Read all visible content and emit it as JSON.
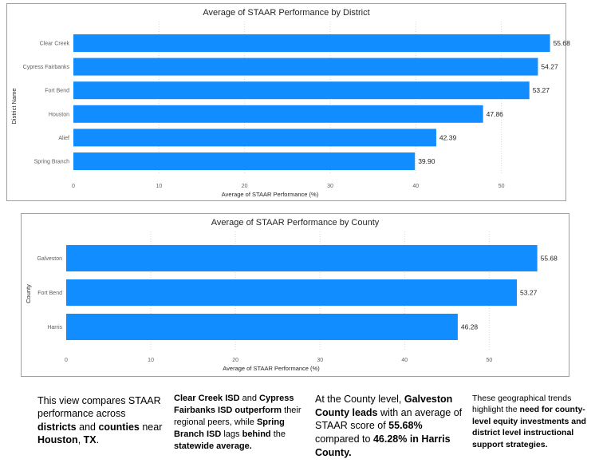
{
  "chart_data": [
    {
      "type": "bar",
      "orientation": "horizontal",
      "title": "Average of STAAR Performance by District",
      "xlabel": "Average of STAAR Performance (%)",
      "ylabel": "District Name",
      "categories": [
        "Clear Creek",
        "Cypress Fairbanks",
        "Fort Bend",
        "Houston",
        "Alief",
        "Spring Branch"
      ],
      "values": [
        55.68,
        54.27,
        53.27,
        47.86,
        42.39,
        39.9
      ],
      "data_labels": [
        "55.68",
        "54.27",
        "53.27",
        "47.86",
        "42.39",
        "39.90"
      ],
      "xlim": [
        0,
        56
      ],
      "ticks": [
        0,
        10,
        20,
        30,
        40,
        50
      ],
      "tick_labels": [
        "0",
        "10",
        "20",
        "30",
        "40",
        "50"
      ],
      "grid": "vertical dotted",
      "bar_color": "#118DFF"
    },
    {
      "type": "bar",
      "orientation": "horizontal",
      "title": "Average of STAAR Performance by County",
      "xlabel": "Average of STAAR Performance (%)",
      "ylabel": "County",
      "categories": [
        "Galveston",
        "Fort Bend",
        "Harris"
      ],
      "values": [
        55.68,
        53.27,
        46.28
      ],
      "data_labels": [
        "55.68",
        "53.27",
        "46.28"
      ],
      "xlim": [
        0,
        56
      ],
      "ticks": [
        0,
        10,
        20,
        30,
        40,
        50
      ],
      "tick_labels": [
        "0",
        "10",
        "20",
        "30",
        "40",
        "50"
      ],
      "grid": "vertical dotted",
      "bar_color": "#118DFF"
    }
  ],
  "narrative": {
    "p1": {
      "a": "This view compares STAAR performance across ",
      "b": "districts",
      "c": " and ",
      "d": "counties",
      "e": " near ",
      "f": "Houston",
      "g": ", ",
      "h": "TX",
      "i": "."
    },
    "p2": {
      "a": "Clear Creek ISD",
      "b": " and ",
      "c": "Cypress Fairbanks ISD outperform",
      "d": " their regional peers, while ",
      "e": "Spring Branch ISD",
      "f": " lags ",
      "g": "behind",
      "h": " the ",
      "i": "statewide average."
    },
    "p3": {
      "a": "At the County level, ",
      "b": "Galveston County leads",
      "c": " with an average of STAAR score of ",
      "d": "55.68%",
      "e": " compared to ",
      "f": "46.28% in Harris County."
    },
    "p4": {
      "a": "These geographical trends highlight the ",
      "b": "need for county-level equity investments and district level instructional support strategies."
    }
  }
}
